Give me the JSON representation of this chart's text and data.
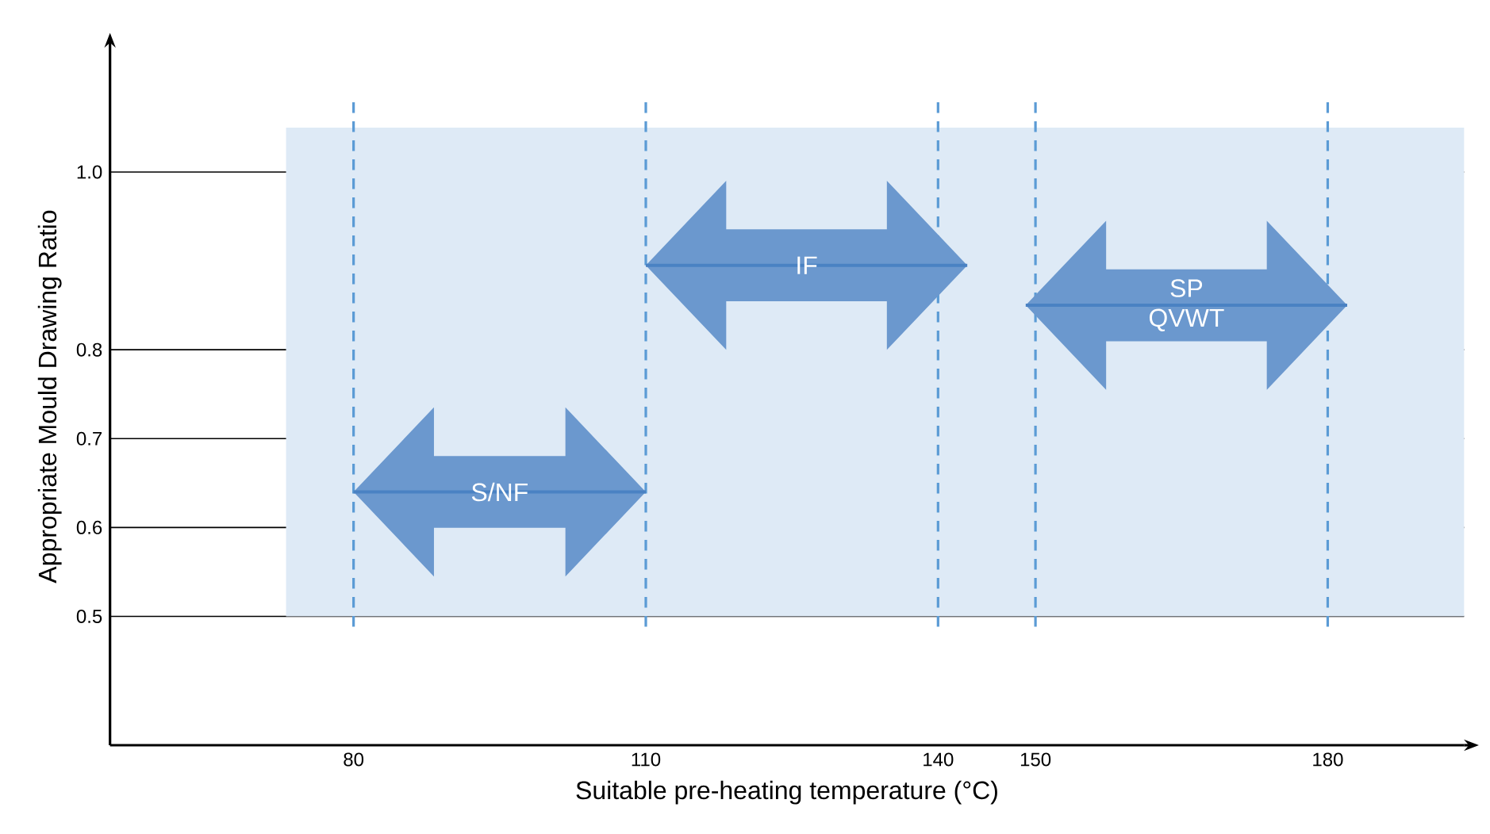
{
  "chart_data": {
    "type": "line",
    "xlabel": "Suitable pre-heating temperature (°C)",
    "ylabel": "Appropriate Mould Drawing Ratio",
    "xlim": [
      55,
      194
    ],
    "xticks": [
      80,
      110,
      140,
      150,
      180
    ],
    "ylim": [
      0.355,
      1.14
    ],
    "yticks": [
      0.5,
      0.6,
      0.7,
      0.8,
      {
        "value": 1.0,
        "label": "1.0"
      }
    ],
    "grid": "y",
    "bands": [
      {
        "axis": "y",
        "from": 0.5,
        "to": 1.05,
        "color": "#deeaf6"
      }
    ],
    "ref_lines": [
      {
        "axis": "x",
        "value": 80,
        "color": "#5b9bd5",
        "line_style": "dashed"
      },
      {
        "axis": "x",
        "value": 110,
        "color": "#5b9bd5",
        "line_style": "dashed"
      },
      {
        "axis": "x",
        "value": 140,
        "color": "#5b9bd5",
        "line_style": "dashed"
      },
      {
        "axis": "x",
        "value": 150,
        "color": "#5b9bd5",
        "line_style": "dashed"
      },
      {
        "axis": "x",
        "value": 180,
        "color": "#5b9bd5",
        "line_style": "dashed"
      }
    ],
    "series": [
      {
        "name": "S/NF",
        "color": "#4a82c3",
        "x": [
          80,
          110
        ],
        "values": [
          0.64,
          0.64
        ]
      },
      {
        "name": "IF",
        "color": "#4a82c3",
        "x": [
          110,
          143
        ],
        "values": [
          0.895,
          0.895
        ]
      },
      {
        "name": "SP QVWT",
        "color": "#4a82c3",
        "x": [
          149,
          182
        ],
        "values": [
          0.85,
          0.85
        ]
      }
    ]
  }
}
